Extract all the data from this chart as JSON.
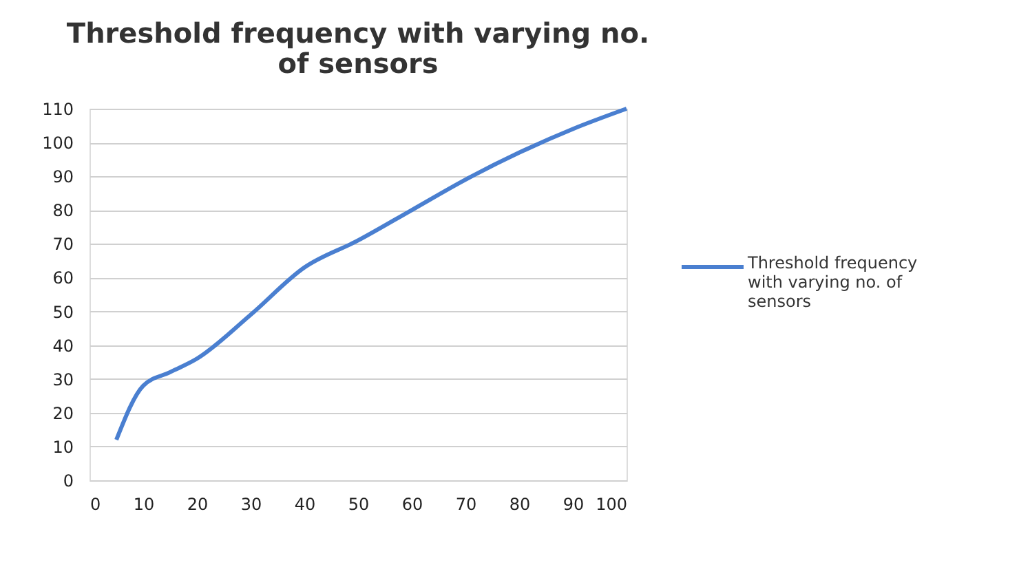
{
  "chart_data": {
    "type": "line",
    "title": "Threshold frequency with varying no. of sensors",
    "x": [
      5,
      10,
      15,
      20,
      30,
      40,
      50,
      60,
      70,
      80,
      90,
      100
    ],
    "series": [
      {
        "name": "Threshold frequency with varying no. of sensors",
        "color": "#4a7fd0",
        "values": [
          12,
          28,
          32,
          36,
          49,
          63,
          71,
          80,
          89,
          97,
          104,
          110
        ]
      }
    ],
    "xlim": [
      0,
      100
    ],
    "xticks": [
      0,
      10,
      20,
      30,
      40,
      50,
      60,
      70,
      80,
      90,
      100
    ],
    "ylim": [
      0,
      110
    ],
    "yticks": [
      0,
      10,
      20,
      30,
      40,
      50,
      60,
      70,
      80,
      90,
      100,
      110
    ],
    "grid": "y",
    "legend": "right",
    "marker": "none",
    "line_style": "solid"
  }
}
